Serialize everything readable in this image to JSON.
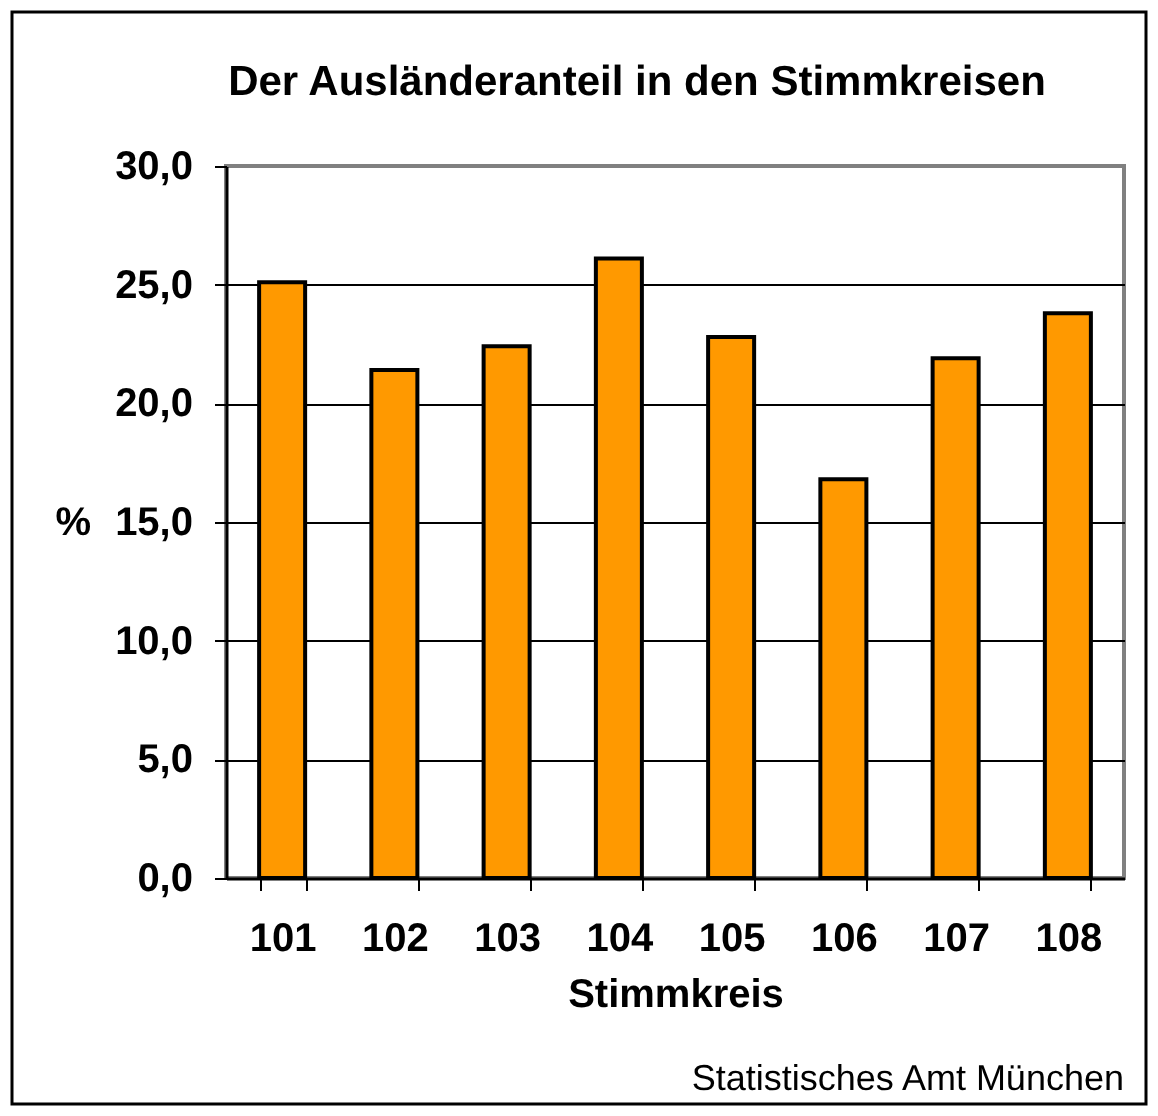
{
  "chart_data": {
    "type": "bar",
    "title": "Der Ausländeranteil in den Stimmkreisen",
    "xlabel": "Stimmkreis",
    "ylabel": "%",
    "categories": [
      "101",
      "102",
      "103",
      "104",
      "105",
      "106",
      "107",
      "108"
    ],
    "values": [
      25.1,
      21.4,
      22.4,
      26.1,
      22.8,
      16.8,
      21.9,
      23.8
    ],
    "color": "#ff9900",
    "ylim": [
      0,
      30
    ],
    "yticks": [
      {
        "value": 0,
        "label": "0,0"
      },
      {
        "value": 5,
        "label": "5,0"
      },
      {
        "value": 10,
        "label": "10,0"
      },
      {
        "value": 15,
        "label": "15,0"
      },
      {
        "value": 20,
        "label": "20,0"
      },
      {
        "value": 25,
        "label": "25,0"
      },
      {
        "value": 30,
        "label": "30,0"
      }
    ],
    "grid": "y",
    "annotations": [
      "Statistisches Amt München"
    ]
  }
}
